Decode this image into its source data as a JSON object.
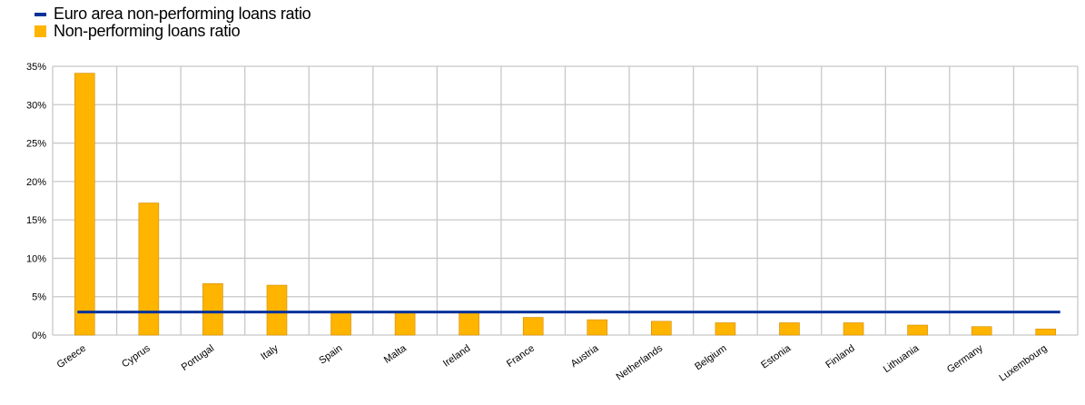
{
  "chart_data": {
    "type": "bar",
    "categories": [
      "Greece",
      "Cyprus",
      "Portugal",
      "Italy",
      "Spain",
      "Malta",
      "Ireland",
      "France",
      "Austria",
      "Netherlands",
      "Belgium",
      "Estonia",
      "Finland",
      "Lithuania",
      "Germany",
      "Luxembourg"
    ],
    "series": [
      {
        "name": "Non-performing loans ratio",
        "type": "bar",
        "color": "#FFB400",
        "values": [
          34.1,
          17.2,
          6.7,
          6.5,
          2.9,
          2.9,
          2.9,
          2.3,
          2.0,
          1.8,
          1.6,
          1.6,
          1.6,
          1.3,
          1.1,
          0.8
        ]
      },
      {
        "name": "Euro area non-performing loans ratio",
        "type": "line",
        "color": "#003299",
        "value": 3.0
      }
    ],
    "yticks": [
      "0%",
      "5%",
      "10%",
      "15%",
      "20%",
      "25%",
      "30%",
      "35%"
    ],
    "ylim": [
      0,
      35
    ],
    "grid": true,
    "legend": "top-left"
  }
}
